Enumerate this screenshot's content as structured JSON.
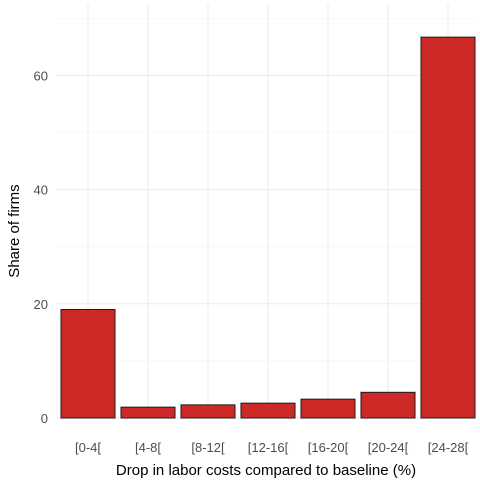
{
  "chart_data": {
    "type": "bar",
    "title": "",
    "xlabel": "Drop in labor costs compared to baseline (%)",
    "ylabel": "Share of firms",
    "categories": [
      "[0-4[",
      "[4-8[",
      "[8-12[",
      "[12-16[",
      "[16-20[",
      "[20-24[",
      "[24-28["
    ],
    "values": [
      19.0,
      1.9,
      2.3,
      2.6,
      3.3,
      4.5,
      66.7
    ],
    "ylim": [
      0,
      70
    ],
    "yticks": [
      0,
      20,
      40,
      60
    ],
    "bar_color": "#cd2a27",
    "grid": true,
    "legend": "none"
  }
}
